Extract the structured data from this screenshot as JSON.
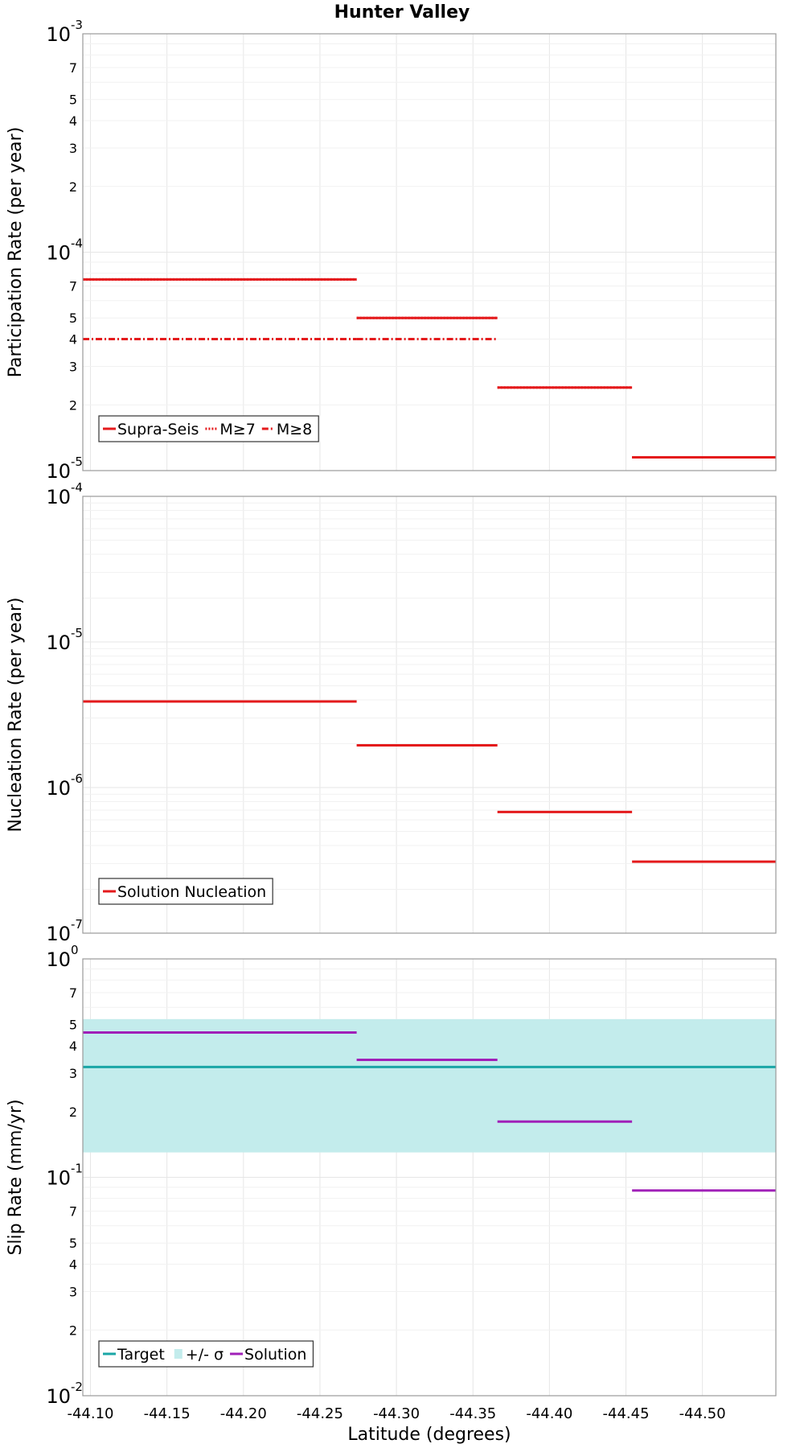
{
  "title": "Hunter Valley",
  "xlabel": "Latitude (degrees)",
  "x_ticks": [
    "-44.10",
    "-44.15",
    "-44.20",
    "-44.25",
    "-44.30",
    "-44.35",
    "-44.40",
    "-44.45",
    "-44.50"
  ],
  "colors": {
    "red": "#e41a1c",
    "teal": "#1aa6a6",
    "band": "#c3ecec",
    "purple": "#a020b8"
  },
  "chart_data": [
    {
      "type": "line",
      "ylabel": "Participation Rate (per year)",
      "yscale": "log",
      "ylim": [
        1e-05,
        0.001
      ],
      "xlim": [
        -44.095,
        -44.548
      ],
      "y_tick_labels": {
        "decades": [
          {
            "base": "10",
            "exp": "-5"
          },
          {
            "base": "10",
            "exp": "-4"
          },
          {
            "base": "10",
            "exp": "-3"
          }
        ],
        "minor": [
          "2",
          "3",
          "4",
          "5",
          "7"
        ]
      },
      "legend": {
        "location": "lower-left",
        "entries": [
          "Supra-Seis",
          "M≥7",
          "M≥8"
        ]
      },
      "series": [
        {
          "name": "Supra-Seis",
          "style": "solid",
          "color": "#e41a1c",
          "segments": [
            [
              -44.095,
              -44.274,
              7.5e-05
            ],
            [
              -44.274,
              -44.366,
              5e-05
            ],
            [
              -44.366,
              -44.454,
              2.4e-05
            ],
            [
              -44.454,
              -44.548,
              1.15e-05
            ]
          ]
        },
        {
          "name": "M≥7",
          "style": "dotted",
          "color": "#e41a1c",
          "segments": [
            [
              -44.095,
              -44.274,
              7.5e-05
            ],
            [
              -44.274,
              -44.366,
              5e-05
            ],
            [
              -44.366,
              -44.454,
              2.4e-05
            ],
            [
              -44.454,
              -44.548,
              1.15e-05
            ]
          ]
        },
        {
          "name": "M≥8",
          "style": "dashdot",
          "color": "#e41a1c",
          "segments": [
            [
              -44.095,
              -44.274,
              4e-05
            ],
            [
              -44.274,
              -44.366,
              4e-05
            ]
          ]
        }
      ]
    },
    {
      "type": "line",
      "ylabel": "Nucleation Rate (per year)",
      "yscale": "log",
      "ylim": [
        1e-07,
        0.0001
      ],
      "xlim": [
        -44.095,
        -44.548
      ],
      "y_tick_labels": {
        "decades": [
          {
            "base": "10",
            "exp": "-7"
          },
          {
            "base": "10",
            "exp": "-6"
          },
          {
            "base": "10",
            "exp": "-5"
          },
          {
            "base": "10",
            "exp": "-4"
          }
        ],
        "minor": []
      },
      "legend": {
        "location": "lower-left",
        "entries": [
          "Solution Nucleation"
        ]
      },
      "series": [
        {
          "name": "Solution Nucleation",
          "style": "solid",
          "color": "#e41a1c",
          "segments": [
            [
              -44.095,
              -44.274,
              3.9e-06
            ],
            [
              -44.274,
              -44.366,
              1.95e-06
            ],
            [
              -44.366,
              -44.454,
              6.8e-07
            ],
            [
              -44.454,
              -44.548,
              3.1e-07
            ]
          ]
        }
      ]
    },
    {
      "type": "line",
      "ylabel": "Slip Rate (mm/yr)",
      "yscale": "log",
      "ylim": [
        0.01,
        1
      ],
      "xlim": [
        -44.095,
        -44.548
      ],
      "y_tick_labels": {
        "decades": [
          {
            "base": "10",
            "exp": "-2"
          },
          {
            "base": "10",
            "exp": "-1"
          },
          {
            "base": "10",
            "exp": "0"
          }
        ],
        "minor": [
          "2",
          "3",
          "4",
          "5",
          "7"
        ]
      },
      "legend": {
        "location": "lower-left",
        "entries": [
          "Target",
          "+/- σ",
          "Solution"
        ]
      },
      "band": {
        "name": "+/- σ",
        "low": 0.13,
        "high": 0.53,
        "color": "#c3ecec"
      },
      "series": [
        {
          "name": "Target",
          "style": "solid",
          "color": "#1aa6a6",
          "segments": [
            [
              -44.095,
              -44.548,
              0.32
            ]
          ]
        },
        {
          "name": "Solution",
          "style": "solid",
          "color": "#a020b8",
          "segments": [
            [
              -44.095,
              -44.274,
              0.46
            ],
            [
              -44.274,
              -44.366,
              0.345
            ],
            [
              -44.366,
              -44.454,
              0.18
            ],
            [
              -44.454,
              -44.548,
              0.087
            ]
          ]
        }
      ]
    }
  ]
}
